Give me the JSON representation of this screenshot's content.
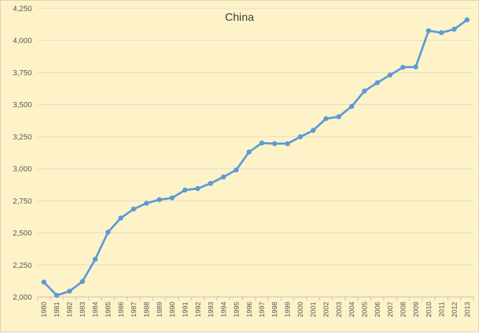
{
  "chart_data": {
    "type": "line",
    "title": "China",
    "xlabel": "",
    "ylabel": "",
    "ylim": [
      2000,
      4250
    ],
    "yticks": [
      "2,000",
      "2,250",
      "2,500",
      "2,750",
      "3,000",
      "3,250",
      "3,500",
      "3,750",
      "4,000",
      "4,250"
    ],
    "grid": true,
    "legend": "none",
    "line_color": "#5b9bd5",
    "background_color": "#fdf2c8",
    "categories": [
      "1980",
      "1981",
      "1982",
      "1983",
      "1984",
      "1985",
      "1986",
      "1987",
      "1988",
      "1989",
      "1990",
      "1991",
      "1992",
      "1993",
      "1994",
      "1995",
      "1996",
      "1997",
      "1998",
      "1999",
      "2000",
      "2001",
      "2002",
      "2003",
      "2004",
      "2005",
      "2006",
      "2007",
      "2008",
      "2009",
      "2010",
      "2011",
      "2012",
      "2013"
    ],
    "series": [
      {
        "values": [
          2115,
          2012,
          2045,
          2120,
          2293,
          2505,
          2615,
          2685,
          2730,
          2758,
          2772,
          2833,
          2845,
          2885,
          2935,
          2990,
          3130,
          3200,
          3195,
          3195,
          3248,
          3298,
          3390,
          3405,
          3485,
          3605,
          3670,
          3730,
          3790,
          3793,
          4075,
          4060,
          4087,
          4160
        ]
      }
    ]
  }
}
